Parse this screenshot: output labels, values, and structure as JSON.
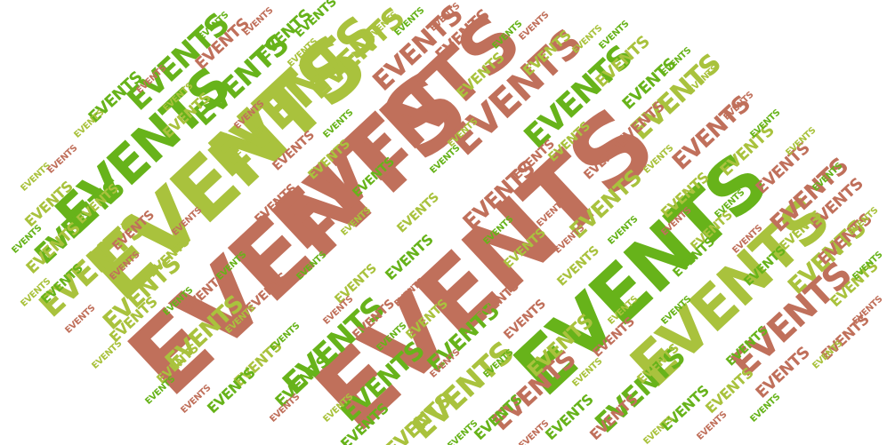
{
  "word": "EVENTS",
  "palette": {
    "terracotta": "#c0705b",
    "green": "#67b31a",
    "yellow_green": "#a9c23d"
  }
}
